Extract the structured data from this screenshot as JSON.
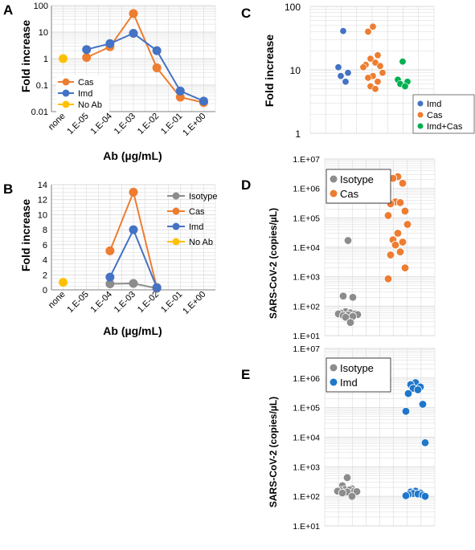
{
  "colors": {
    "isotype": "#8c8c8c",
    "cas": "#ed7d31",
    "imd": "#4472c4",
    "noab": "#ffc000",
    "imdcas": "#00b050",
    "imdE": "#1f77c9",
    "grid": "#d9d9d9",
    "axis": "#808080"
  },
  "chart_data": [
    {
      "panel": "A",
      "type": "line",
      "title": "",
      "xlabel": "Ab (µg/mL)",
      "ylabel": "Fold increase",
      "yscale": "log",
      "ylim": [
        0.01,
        100
      ],
      "yticks": [
        "0.01",
        "0.1",
        "1",
        "10",
        "100"
      ],
      "categories": [
        "none",
        "1.E-05",
        "1.E-04",
        "1.E-03",
        "1.E-02",
        "1.E-01",
        "1.E+00"
      ],
      "legend_position": "bottom-left",
      "series": [
        {
          "name": "Cas",
          "color_key": "cas",
          "values": [
            null,
            1.1,
            2.8,
            50,
            0.45,
            0.035,
            0.022
          ]
        },
        {
          "name": "Imd",
          "color_key": "imd",
          "values": [
            null,
            2.2,
            3.7,
            9,
            2,
            0.06,
            0.025
          ]
        },
        {
          "name": "No Ab",
          "color_key": "noab",
          "values": [
            1,
            null,
            null,
            null,
            null,
            null,
            null
          ]
        }
      ]
    },
    {
      "panel": "B",
      "type": "line",
      "title": "",
      "xlabel": "Ab (µg/mL)",
      "ylabel": "Fold increase",
      "yscale": "linear",
      "ylim": [
        0,
        14
      ],
      "yticks": [
        "0",
        "2",
        "4",
        "6",
        "8",
        "10",
        "12",
        "14"
      ],
      "categories": [
        "none",
        "1.E-05",
        "1.E-04",
        "1.E-03",
        "1.E-02",
        "1.E-01",
        "1.E+00"
      ],
      "legend_position": "right",
      "series": [
        {
          "name": "Isotype",
          "color_key": "isotype",
          "values": [
            null,
            null,
            0.8,
            0.85,
            0.2,
            null,
            null
          ]
        },
        {
          "name": "Cas",
          "color_key": "cas",
          "values": [
            null,
            null,
            5.2,
            13,
            0.3,
            null,
            null
          ]
        },
        {
          "name": "Imd",
          "color_key": "imd",
          "values": [
            null,
            null,
            1.7,
            8,
            0.3,
            null,
            null
          ]
        },
        {
          "name": "No Ab",
          "color_key": "noab",
          "values": [
            1,
            null,
            null,
            null,
            null,
            null,
            null
          ]
        }
      ]
    },
    {
      "panel": "C",
      "type": "scatter",
      "title": "",
      "xlabel": "",
      "ylabel": "Fold increase",
      "yscale": "log",
      "ylim": [
        1,
        100
      ],
      "yticks": [
        "1",
        "10",
        "100"
      ],
      "legend_position": "bottom-right",
      "series": [
        {
          "name": "Imd",
          "color_key": "imd",
          "values": [
            41,
            11,
            9,
            8,
            6.5
          ]
        },
        {
          "name": "Cas",
          "color_key": "cas",
          "values": [
            48,
            40,
            17,
            15,
            13,
            12,
            11.5,
            11,
            9,
            8,
            7.5,
            6.5,
            5.5,
            5
          ]
        },
        {
          "name": "Imd+Cas",
          "color_key": "imdcas",
          "values": [
            13.5,
            7,
            6.5,
            6,
            5.5
          ]
        }
      ]
    },
    {
      "panel": "D",
      "type": "scatter",
      "title": "",
      "xlabel": "",
      "ylabel": "SARS-CoV-2 (copies/µL)",
      "yscale": "log",
      "ylim": [
        10,
        10000000
      ],
      "yticks": [
        "1.E+01",
        "1.E+02",
        "1.E+03",
        "1.E+04",
        "1.E+05",
        "1.E+06",
        "1.E+07"
      ],
      "legend_position": "top-left",
      "series": [
        {
          "name": "Isotype",
          "color_key": "isotype",
          "values": [
            17000,
            220,
            200,
            65,
            60,
            58,
            55,
            55,
            52,
            50,
            48,
            45,
            42,
            28
          ]
        },
        {
          "name": "Cas",
          "color_key": "cas",
          "values": [
            2500000,
            2200000,
            1500000,
            350000,
            330000,
            300000,
            170000,
            120000,
            60000,
            30000,
            18000,
            15000,
            12000,
            7000,
            5500,
            2000,
            850
          ]
        }
      ]
    },
    {
      "panel": "E",
      "type": "scatter",
      "title": "",
      "xlabel": "",
      "ylabel": "SARS-CoV-2 (copies/µL)",
      "yscale": "log",
      "ylim": [
        10,
        10000000
      ],
      "yticks": [
        "1.E+01",
        "1.E+02",
        "1.E+03",
        "1.E+04",
        "1.E+05",
        "1.E+06",
        "1.E+07"
      ],
      "legend_position": "top-left",
      "series": [
        {
          "name": "Isotype",
          "color_key": "isotype",
          "values": [
            430,
            230,
            180,
            170,
            165,
            160,
            150,
            150,
            145,
            140,
            130,
            100
          ]
        },
        {
          "name": "Imd",
          "color_key": "imdE",
          "values": [
            700000,
            600000,
            500000,
            450000,
            400000,
            300000,
            130000,
            75000,
            6500,
            150,
            140,
            130,
            125,
            120,
            115,
            110,
            105,
            100
          ]
        }
      ]
    }
  ]
}
